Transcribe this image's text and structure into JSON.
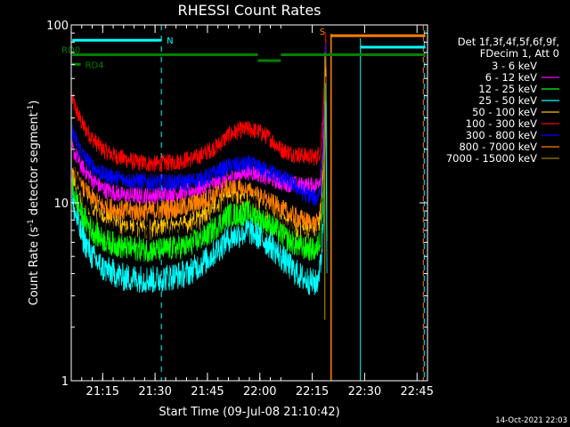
{
  "chart_data": {
    "type": "line",
    "title": "RHESSI Count Rates",
    "xlabel": "Start Time (09-Jul-08 21:10:42)",
    "ylabel_main": "Count Rate (s",
    "ylabel_exp": "-1",
    "ylabel_rest": " detector segment",
    "ylabel_close": ")",
    "yscale": "log",
    "ylim": [
      1,
      100
    ],
    "xlim_minutes": [
      21.1,
      22.8
    ],
    "x_ticks": [
      {
        "t": 21.25,
        "label": "21:15"
      },
      {
        "t": 21.5,
        "label": "21:30"
      },
      {
        "t": 21.75,
        "label": "21:45"
      },
      {
        "t": 22.0,
        "label": "22:00"
      },
      {
        "t": 22.25,
        "label": "22:15"
      },
      {
        "t": 22.5,
        "label": "22:30"
      },
      {
        "t": 22.75,
        "label": "22:45"
      }
    ],
    "y_ticks": [
      {
        "v": 1,
        "label": "1"
      },
      {
        "v": 10,
        "label": "10"
      },
      {
        "v": 100,
        "label": "100"
      }
    ],
    "legend": {
      "header1": "Det 1f,3f,4f,5f,6f,9f,",
      "header2": "FDecim 1, Att 0",
      "entries": [
        {
          "label": "3 - 6 keV",
          "color": "#000000"
        },
        {
          "label": "6 - 12 keV",
          "color": "#ff00ff"
        },
        {
          "label": "12 - 25 keV",
          "color": "#00ff00"
        },
        {
          "label": "25 - 50 keV",
          "color": "#00ffff"
        },
        {
          "label": "50 - 100 keV",
          "color": "#ffbf00"
        },
        {
          "label": "100 - 300 keV",
          "color": "#ff0000"
        },
        {
          "label": "300 - 800 keV",
          "color": "#0000ff"
        },
        {
          "label": "800 - 7000 keV",
          "color": "#ff8000"
        },
        {
          "label": "7000 - 15000 keV",
          "color": "#a08000"
        }
      ]
    },
    "series": [
      {
        "name": "100 - 300 keV",
        "color": "#ff0000",
        "noise": 0.05,
        "points": [
          [
            21.105,
            38
          ],
          [
            21.12,
            34
          ],
          [
            21.15,
            28
          ],
          [
            21.2,
            23
          ],
          [
            21.25,
            20
          ],
          [
            21.3,
            18.5
          ],
          [
            21.4,
            17
          ],
          [
            21.5,
            16.5
          ],
          [
            21.6,
            17
          ],
          [
            21.7,
            18
          ],
          [
            21.8,
            21
          ],
          [
            21.85,
            24
          ],
          [
            21.9,
            25.5
          ],
          [
            21.95,
            26
          ],
          [
            22.0,
            25
          ],
          [
            22.05,
            23
          ],
          [
            22.1,
            20
          ],
          [
            22.15,
            19
          ],
          [
            22.2,
            18.5
          ],
          [
            22.27,
            18
          ],
          [
            22.29,
            20
          ],
          [
            22.305,
            40
          ],
          [
            22.315,
            95
          ],
          [
            22.32,
            20
          ]
        ]
      },
      {
        "name": "6 - 12 keV",
        "color": "#ff00ff",
        "noise": 0.05,
        "points": [
          [
            21.105,
            20
          ],
          [
            21.15,
            16
          ],
          [
            21.2,
            13.5
          ],
          [
            21.25,
            12
          ],
          [
            21.35,
            11
          ],
          [
            21.5,
            11
          ],
          [
            21.65,
            11.5
          ],
          [
            21.8,
            13
          ],
          [
            21.9,
            14.5
          ],
          [
            21.95,
            15
          ],
          [
            22.0,
            14.5
          ],
          [
            22.1,
            13
          ],
          [
            22.2,
            12.5
          ],
          [
            22.27,
            12.5
          ],
          [
            22.29,
            14
          ],
          [
            22.305,
            30
          ],
          [
            22.315,
            80
          ],
          [
            22.32,
            15
          ]
        ]
      },
      {
        "name": "300 - 800 keV",
        "color": "#0000ff",
        "noise": 0.05,
        "points": [
          [
            21.105,
            25
          ],
          [
            21.15,
            19
          ],
          [
            21.2,
            16
          ],
          [
            21.25,
            14.5
          ],
          [
            21.35,
            13.5
          ],
          [
            21.5,
            13
          ],
          [
            21.65,
            13
          ],
          [
            21.75,
            14
          ],
          [
            21.85,
            16
          ],
          [
            21.95,
            16.5
          ],
          [
            22.05,
            15
          ],
          [
            22.15,
            13
          ],
          [
            22.2,
            11.5
          ],
          [
            22.27,
            10.5
          ],
          [
            22.29,
            12
          ],
          [
            22.305,
            25
          ],
          [
            22.315,
            85
          ],
          [
            22.32,
            13
          ]
        ]
      },
      {
        "name": "800 - 7000 keV",
        "color": "#ff8000",
        "noise": 0.06,
        "points": [
          [
            21.105,
            15
          ],
          [
            21.15,
            12
          ],
          [
            21.2,
            10.5
          ],
          [
            21.25,
            9.5
          ],
          [
            21.35,
            9
          ],
          [
            21.5,
            9
          ],
          [
            21.65,
            9.5
          ],
          [
            21.75,
            10.5
          ],
          [
            21.85,
            12
          ],
          [
            21.95,
            11.5
          ],
          [
            22.05,
            10
          ],
          [
            22.15,
            8.5
          ],
          [
            22.2,
            8
          ],
          [
            22.27,
            7.5
          ],
          [
            22.29,
            9
          ],
          [
            22.305,
            20
          ],
          [
            22.315,
            70
          ],
          [
            22.32,
            8.5
          ]
        ]
      },
      {
        "name": "50 - 100 keV",
        "color": "#ffbf00",
        "noise": 0.06,
        "points": [
          [
            21.105,
            14
          ],
          [
            21.15,
            10.5
          ],
          [
            21.2,
            9
          ],
          [
            21.25,
            8
          ],
          [
            21.35,
            7.3
          ],
          [
            21.5,
            7
          ],
          [
            21.65,
            7.5
          ],
          [
            21.75,
            8.5
          ],
          [
            21.85,
            10.5
          ],
          [
            21.95,
            10
          ],
          [
            22.05,
            8.5
          ],
          [
            22.15,
            7.2
          ],
          [
            22.2,
            6.8
          ],
          [
            22.27,
            6.5
          ],
          [
            22.29,
            8
          ],
          [
            22.305,
            16
          ],
          [
            22.315,
            60
          ],
          [
            22.32,
            7
          ]
        ]
      },
      {
        "name": "3 - 6 keV",
        "color": "#000000",
        "noise": 0.07,
        "points": [
          [
            21.105,
            17
          ],
          [
            21.15,
            11
          ],
          [
            21.2,
            8.5
          ],
          [
            21.25,
            7.3
          ],
          [
            21.35,
            6.5
          ],
          [
            21.5,
            6.3
          ],
          [
            21.65,
            6.6
          ],
          [
            21.75,
            7.5
          ],
          [
            21.85,
            9.8
          ],
          [
            21.95,
            10
          ],
          [
            22.05,
            8.5
          ],
          [
            22.15,
            6.8
          ],
          [
            22.2,
            6.3
          ],
          [
            22.27,
            6.0
          ],
          [
            22.29,
            7
          ],
          [
            22.305,
            14
          ],
          [
            22.315,
            55
          ],
          [
            22.32,
            6.5
          ]
        ]
      },
      {
        "name": "12 - 25 keV",
        "color": "#00ff00",
        "noise": 0.07,
        "points": [
          [
            21.105,
            12
          ],
          [
            21.15,
            8.5
          ],
          [
            21.2,
            7
          ],
          [
            21.25,
            6.2
          ],
          [
            21.35,
            5.6
          ],
          [
            21.5,
            5.4
          ],
          [
            21.65,
            5.7
          ],
          [
            21.75,
            6.6
          ],
          [
            21.85,
            8.5
          ],
          [
            21.95,
            8.8
          ],
          [
            22.05,
            7.5
          ],
          [
            22.15,
            6
          ],
          [
            22.2,
            5.6
          ],
          [
            22.27,
            5.4
          ],
          [
            22.29,
            6.5
          ],
          [
            22.305,
            12
          ],
          [
            22.315,
            50
          ],
          [
            22.32,
            6
          ]
        ]
      },
      {
        "name": "25 - 50 keV",
        "color": "#00ffff",
        "noise": 0.08,
        "points": [
          [
            21.105,
            10
          ],
          [
            21.15,
            6.5
          ],
          [
            21.2,
            5
          ],
          [
            21.25,
            4.3
          ],
          [
            21.35,
            3.8
          ],
          [
            21.5,
            3.7
          ],
          [
            21.65,
            4
          ],
          [
            21.75,
            4.8
          ],
          [
            21.85,
            6.3
          ],
          [
            21.95,
            7
          ],
          [
            22.05,
            5.8
          ],
          [
            22.15,
            4.3
          ],
          [
            22.2,
            3.8
          ],
          [
            22.27,
            3.5
          ],
          [
            22.29,
            4.5
          ],
          [
            22.305,
            8
          ],
          [
            22.315,
            40
          ],
          [
            22.32,
            4
          ]
        ]
      }
    ],
    "spike": {
      "name": "7000 - 15000 keV",
      "color": "#a08000",
      "t": 22.31,
      "low": 2.2,
      "high": 70
    },
    "orange_solid_line_t": 22.34,
    "orange_dashed_line_t": 22.78,
    "cyan_dashed_line_t": 21.53,
    "cyan_solid_line_t": 22.48,
    "state_bars": [
      {
        "label": "N",
        "color": "#00ffff",
        "level": 82,
        "segments": [
          [
            21.105,
            21.53
          ]
        ]
      },
      {
        "label": "",
        "color": "#00ffff",
        "level": 75,
        "segments": [
          [
            22.48,
            22.79
          ]
        ]
      },
      {
        "label": "S",
        "color": "#ff8000",
        "level": 87,
        "segments": [
          [
            22.34,
            22.79
          ]
        ]
      },
      {
        "label": "RD0",
        "color": "#008000",
        "level": 68,
        "segments": [
          [
            21.105,
            21.99
          ],
          [
            22.1,
            22.79
          ]
        ]
      },
      {
        "label": "",
        "color": "#008000",
        "level": 63,
        "segments": [
          [
            21.99,
            22.1
          ]
        ]
      },
      {
        "label": "RD4",
        "color": "#008000",
        "level": 60,
        "segments": [
          [
            21.105,
            21.145
          ]
        ]
      }
    ]
  },
  "timestamp": "14-Oct-2021 22:03"
}
